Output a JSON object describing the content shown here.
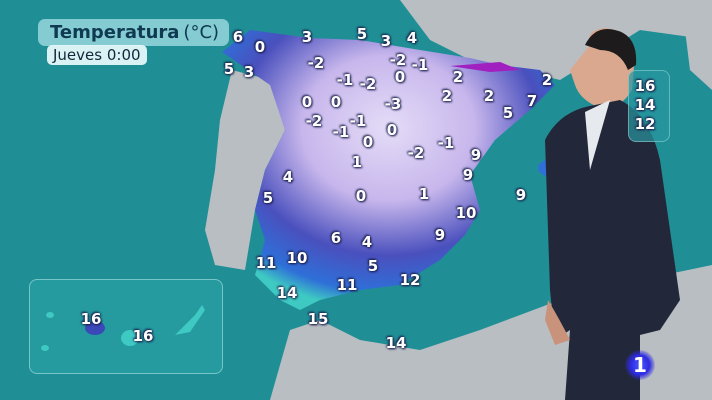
{
  "header": {
    "title": "Temperatura",
    "unit": "(°C)",
    "date": "Jueves 0:00"
  },
  "colors": {
    "sea": "#1f8f95",
    "land": "#b9bec3",
    "cold": "#c9b8ef",
    "cool": "#3b48b8",
    "mild": "#2f6fd8",
    "warm": "#3ec9c2",
    "freezing": "#a020c0"
  },
  "peninsula_temps": [
    "6",
    "0",
    "3",
    "5",
    "3",
    "4",
    "5",
    "3",
    "-2",
    "-2",
    "-1",
    "-1",
    "-2",
    "0",
    "2",
    "2",
    "2",
    "2",
    "7",
    "5",
    "0",
    "0",
    "-3",
    "-2",
    "-1",
    "-1",
    "0",
    "0",
    "-1",
    "-2",
    "9",
    "1",
    "9",
    "6",
    "9",
    "4",
    "5",
    "0",
    "1",
    "10",
    "9",
    "6",
    "4",
    "5",
    "11",
    "10",
    "14",
    "11",
    "12",
    "15",
    "14"
  ],
  "canary_temps": [
    "16",
    "16"
  ],
  "balearic_inset_temps": [
    "16",
    "14",
    "12"
  ],
  "channel_logo": "1"
}
